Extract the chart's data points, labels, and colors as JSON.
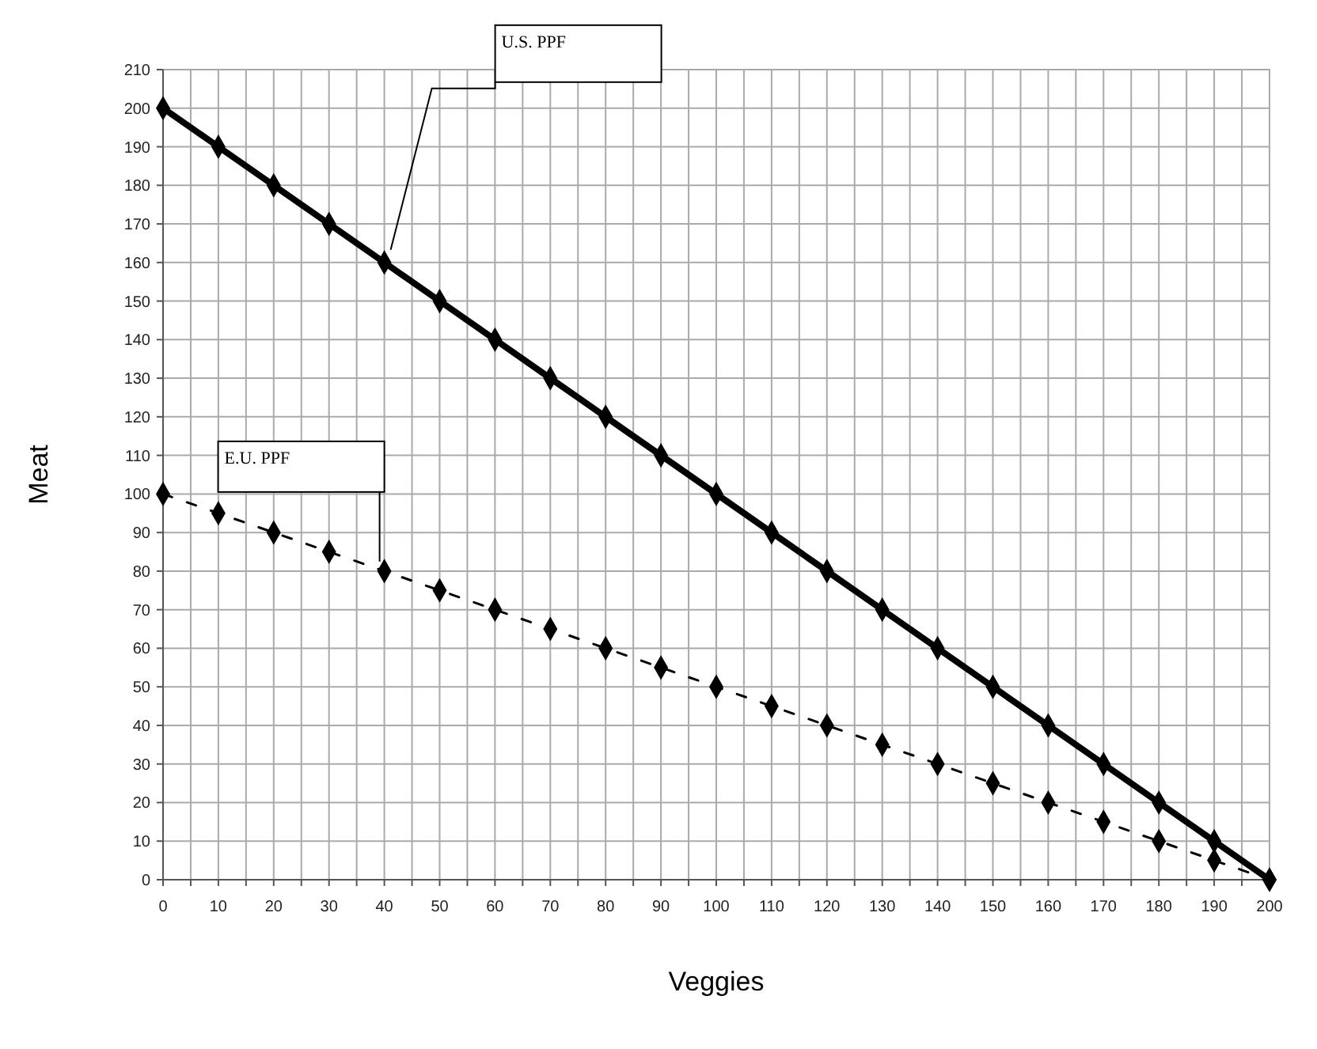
{
  "chart_data": {
    "type": "line",
    "xlabel": "Veggies",
    "ylabel": "Meat",
    "x": [
      0,
      10,
      20,
      30,
      40,
      50,
      60,
      70,
      80,
      90,
      100,
      110,
      120,
      130,
      140,
      150,
      160,
      170,
      180,
      190,
      200
    ],
    "series": [
      {
        "name": "U.S. PPF",
        "color": "#000000",
        "line_style": "solid",
        "values": [
          200,
          190,
          180,
          170,
          160,
          150,
          140,
          130,
          120,
          110,
          100,
          90,
          80,
          70,
          60,
          50,
          40,
          30,
          20,
          10,
          0
        ]
      },
      {
        "name": "E.U. PPF",
        "color": "#000000",
        "line_style": "dashed",
        "values": [
          100,
          95,
          90,
          85,
          80,
          75,
          70,
          65,
          60,
          55,
          50,
          45,
          40,
          35,
          30,
          25,
          20,
          15,
          10,
          5,
          0
        ]
      }
    ],
    "xlim": [
      0,
      200
    ],
    "ylim": [
      0,
      210
    ],
    "xticks": [
      0,
      {
        "value": 5,
        "label": null
      },
      10,
      {
        "value": 15,
        "label": null
      },
      20,
      {
        "value": 25,
        "label": null
      },
      30,
      {
        "value": 35,
        "label": null
      },
      40,
      {
        "value": 45,
        "label": null
      },
      50,
      {
        "value": 55,
        "label": null
      },
      60,
      {
        "value": 65,
        "label": null
      },
      70,
      {
        "value": 75,
        "label": null
      },
      80,
      {
        "value": 85,
        "label": null
      },
      90,
      {
        "value": 95,
        "label": null
      },
      100,
      {
        "value": 105,
        "label": null
      },
      110,
      {
        "value": 115,
        "label": null
      },
      120,
      {
        "value": 125,
        "label": null
      },
      130,
      {
        "value": 135,
        "label": null
      },
      140,
      {
        "value": 145,
        "label": null
      },
      150,
      {
        "value": 155,
        "label": null
      },
      160,
      {
        "value": 165,
        "label": null
      },
      170,
      {
        "value": 175,
        "label": null
      },
      180,
      {
        "value": 185,
        "label": null
      },
      190,
      {
        "value": 195,
        "label": null
      },
      200
    ],
    "yticks": [
      0,
      10,
      20,
      30,
      40,
      50,
      60,
      70,
      80,
      90,
      100,
      110,
      120,
      130,
      140,
      150,
      160,
      170,
      180,
      190,
      200,
      210
    ],
    "grid": true,
    "marker": "diamond"
  }
}
